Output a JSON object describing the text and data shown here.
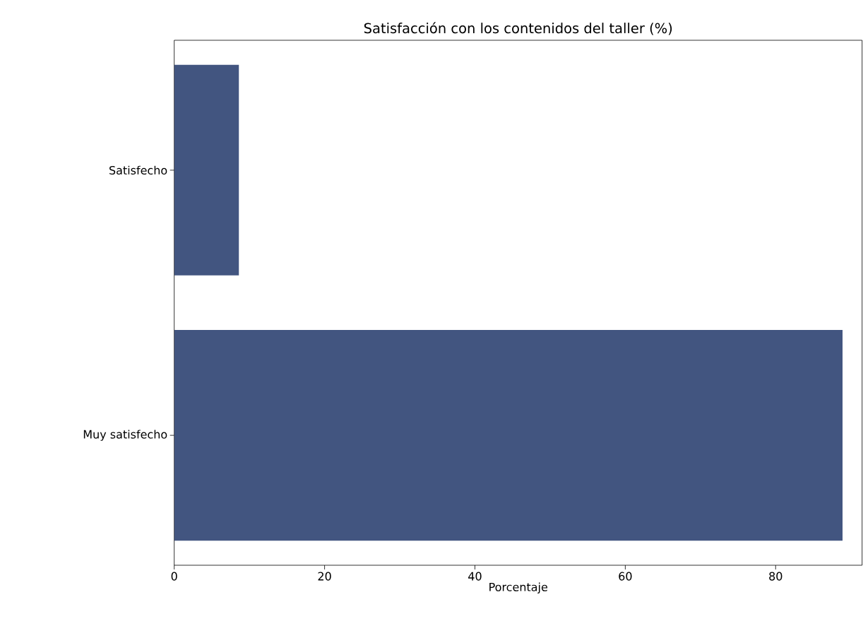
{
  "chart_data": {
    "type": "bar",
    "orientation": "horizontal",
    "title": "Satisfacción con los contenidos del taller (%)",
    "xlabel": "Porcentaje",
    "categories": [
      "Satisfecho",
      "Muy satisfecho"
    ],
    "values": [
      8.6,
      88.9
    ],
    "color": "#425580",
    "xlim": [
      0,
      91.5
    ],
    "xticks": [
      0,
      20,
      40,
      60,
      80
    ]
  }
}
